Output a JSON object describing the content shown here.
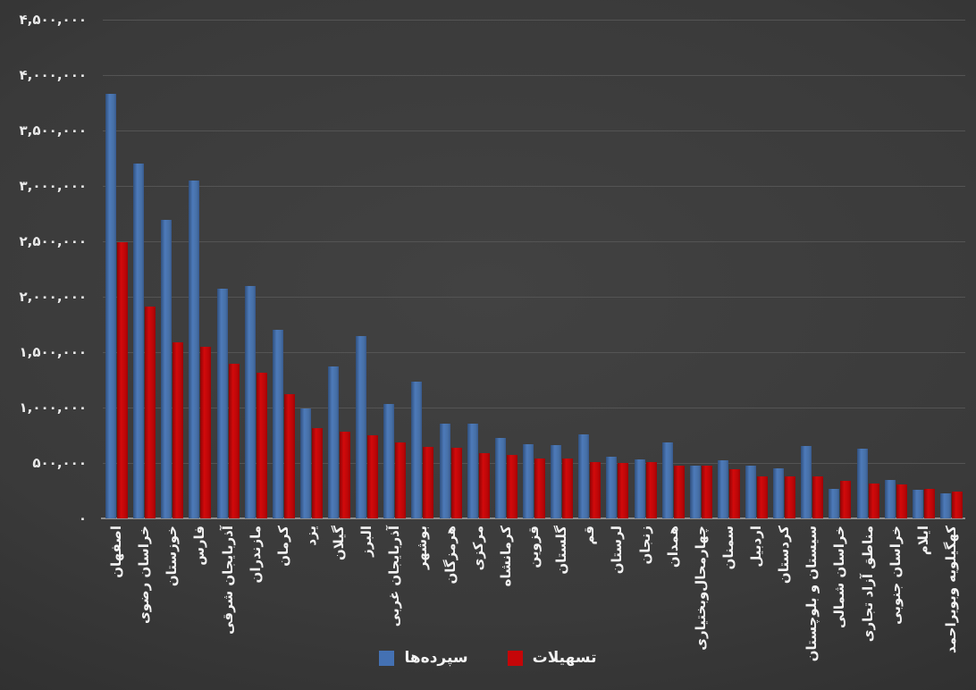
{
  "chart_data": {
    "type": "bar",
    "title": "",
    "xlabel": "",
    "ylabel": "",
    "grid": "horizontal",
    "legend_position": "bottom-center",
    "y_axis": {
      "min": 0,
      "max": 4500000,
      "tick_step": 500000,
      "tick_values": [
        0,
        500000,
        1000000,
        1500000,
        2000000,
        2500000,
        3000000,
        3500000,
        4000000,
        4500000
      ],
      "tick_labels": [
        "۰",
        "۵۰۰,۰۰۰",
        "۱,۰۰۰,۰۰۰",
        "۱,۵۰۰,۰۰۰",
        "۲,۰۰۰,۰۰۰",
        "۲,۵۰۰,۰۰۰",
        "۳,۰۰۰,۰۰۰",
        "۳,۵۰۰,۰۰۰",
        "۴,۰۰۰,۰۰۰",
        "۴,۵۰۰,۰۰۰"
      ]
    },
    "categories": [
      "اصفهان",
      "خراسان رضوی",
      "خوزستان",
      "فارس",
      "آذربایجان شرقی",
      "مازندران",
      "کرمان",
      "یزد",
      "گیلان",
      "البرز",
      "آذربایجان غربی",
      "بوشهر",
      "هرمزگان",
      "مرکزی",
      "کرمانشاه",
      "قزوین",
      "گلستان",
      "قم",
      "لرستان",
      "زنجان",
      "همدان",
      "چهارمحال‌وبختیاری",
      "سمنان",
      "اردبیل",
      "کردستان",
      "سیستان و بلوچستان",
      "خراسان شمالی",
      "مناطق آزاد تجاری",
      "خراسان جنوبی",
      "ایلام",
      "کهگیلویه وبویراحمد"
    ],
    "series": [
      {
        "name": "سپرده‌ها",
        "color": "#4471b3",
        "values": [
          3830000,
          3200000,
          2690000,
          3050000,
          2070000,
          2095000,
          1700000,
          990000,
          1370000,
          1645000,
          1030000,
          1235000,
          855000,
          855000,
          725000,
          670000,
          660000,
          755000,
          555000,
          530000,
          685000,
          475000,
          525000,
          475000,
          450000,
          650000,
          265000,
          630000,
          345000,
          260000,
          225000
        ]
      },
      {
        "name": "تسهیلات",
        "color": "#c50608",
        "values": [
          2490000,
          1910000,
          1585000,
          1550000,
          1395000,
          1315000,
          1120000,
          815000,
          785000,
          750000,
          685000,
          645000,
          635000,
          590000,
          570000,
          540000,
          540000,
          505000,
          500000,
          505000,
          475000,
          475000,
          440000,
          380000,
          380000,
          380000,
          340000,
          315000,
          310000,
          265000,
          240000
        ]
      }
    ]
  },
  "legend": {
    "deposits_label": "سپرده‌ها",
    "facilities_label": "تسهیلات"
  },
  "colors": {
    "background": "#3a3a3a",
    "gridline": "#545454",
    "axis_line": "#8f8f8f",
    "tick_text": "#eaeaea",
    "deposits_bar": "#4471b3",
    "facilities_bar": "#c50608"
  }
}
